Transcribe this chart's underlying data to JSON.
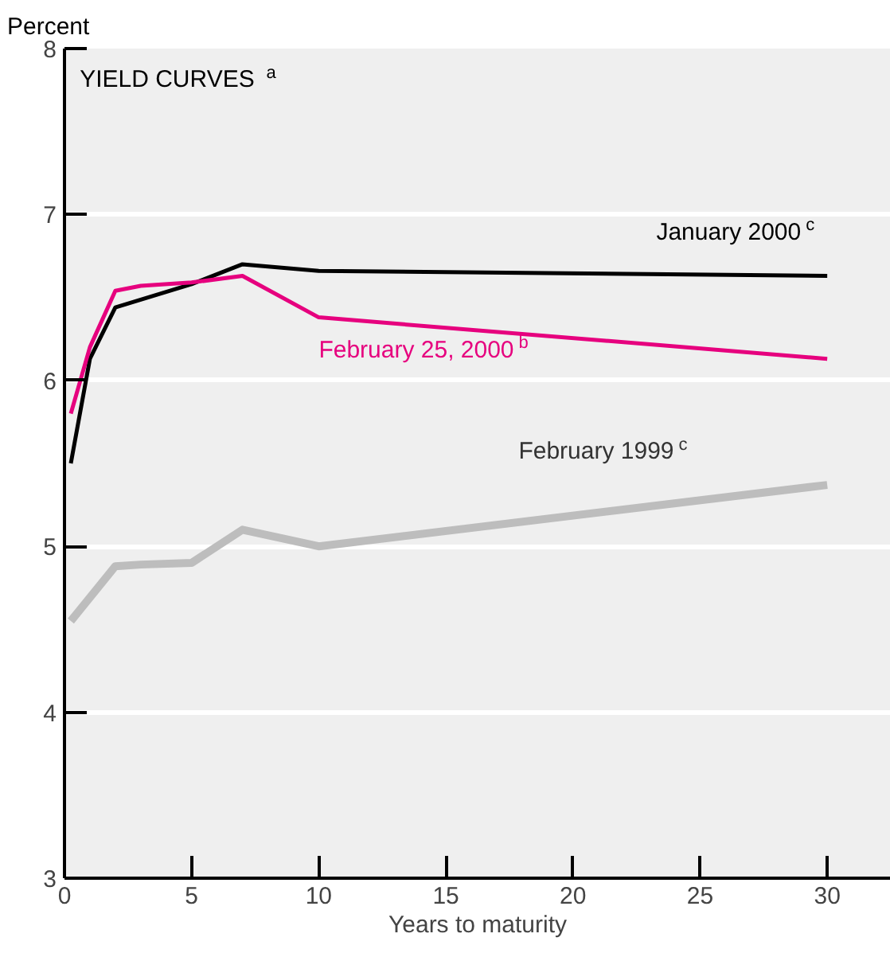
{
  "chart_data": {
    "type": "line",
    "title": "YIELD CURVES$^{a}$",
    "xlabel": "Years to maturity",
    "ylabel": "Percent",
    "xlim": [
      0,
      32.5
    ],
    "ylim": [
      3,
      8
    ],
    "xticks": [
      0,
      5,
      10,
      15,
      20,
      25,
      30
    ],
    "yticks": [
      3,
      4,
      5,
      6,
      7,
      8
    ],
    "grid": "y",
    "series": [
      {
        "name": "January 2000$^{c}$",
        "color": "#000000",
        "x": [
          0.25,
          1,
          2,
          5,
          7,
          10,
          30
        ],
        "values": [
          5.5,
          6.13,
          6.44,
          6.58,
          6.7,
          6.66,
          6.63
        ]
      },
      {
        "name": "February 25, 2000$^{b}$",
        "color": "#e6007e",
        "x": [
          0.25,
          1,
          2,
          3,
          5,
          7,
          10,
          30
        ],
        "values": [
          5.8,
          6.2,
          6.54,
          6.57,
          6.59,
          6.63,
          6.38,
          6.13
        ]
      },
      {
        "name": "February 1999$^{c}$",
        "color": "#bdbdbd",
        "x": [
          0.25,
          2,
          3,
          5,
          7,
          10,
          30
        ],
        "values": [
          4.55,
          4.88,
          4.89,
          4.9,
          5.1,
          5.0,
          5.37
        ]
      }
    ]
  }
}
